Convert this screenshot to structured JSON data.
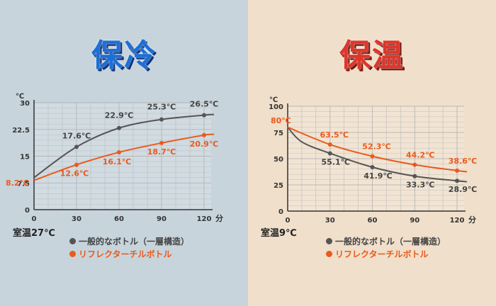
{
  "panels": {
    "cool": {
      "title": "保冷",
      "room_temp": "室温27℃"
    },
    "warm": {
      "title": "保温",
      "room_temp": "室温9℃"
    }
  },
  "legend": {
    "ordinary": "一般的なボトル（一層構造）",
    "reflector": "リフレクターチルボトル"
  },
  "colors": {
    "ordinary": "#555555",
    "reflector": "#ea5a1c"
  },
  "chart_data": [
    {
      "type": "line",
      "title": "保冷",
      "unit_y": "℃",
      "unit_x": "分",
      "x": [
        0,
        30,
        60,
        90,
        120
      ],
      "x_ticks": [
        "0",
        "30",
        "60",
        "90",
        "120"
      ],
      "y_ticks": [
        "0",
        "7.5",
        "15",
        "22.5",
        "30"
      ],
      "xlim": [
        0,
        125
      ],
      "ylim": [
        0,
        30
      ],
      "grid": true,
      "series": [
        {
          "name": "一般的なボトル（一層構造）",
          "x": [
            0,
            30,
            60,
            90,
            120,
            127
          ],
          "y": [
            9,
            17.6,
            22.9,
            25.3,
            26.5,
            26.7
          ],
          "marked": [
            30,
            60,
            90,
            120
          ],
          "labels": [
            "17.6℃",
            "22.9℃",
            "25.3℃",
            "26.5℃"
          ]
        },
        {
          "name": "リフレクターチルボトル",
          "x": [
            0,
            30,
            60,
            90,
            120,
            127
          ],
          "y": [
            8.2,
            12.6,
            16.1,
            18.7,
            20.9,
            21.1
          ],
          "marked": [
            30,
            60,
            90,
            120
          ],
          "labels": [
            "12.6℃",
            "16.1℃",
            "18.7℃",
            "20.9℃"
          ],
          "start_label": "8.2℃"
        }
      ]
    },
    {
      "type": "line",
      "title": "保温",
      "unit_y": "℃",
      "unit_x": "分",
      "x": [
        0,
        30,
        60,
        90,
        120
      ],
      "x_ticks": [
        "0",
        "30",
        "60",
        "90",
        "120"
      ],
      "y_ticks": [
        "0",
        "25",
        "50",
        "75",
        "100"
      ],
      "xlim": [
        0,
        125
      ],
      "ylim": [
        0,
        100
      ],
      "grid": true,
      "series": [
        {
          "name": "一般的なボトル（一層構造）",
          "x": [
            0,
            10,
            30,
            60,
            90,
            120,
            127
          ],
          "y": [
            80,
            66,
            55.1,
            41.9,
            33.3,
            28.9,
            28
          ],
          "marked": [
            30,
            60,
            90,
            120
          ],
          "labels": [
            "55.1℃",
            "41.9℃",
            "33.3℃",
            "28.9℃"
          ]
        },
        {
          "name": "リフレクターチルボトル",
          "x": [
            0,
            30,
            60,
            90,
            120,
            127
          ],
          "y": [
            80,
            63.5,
            52.3,
            44.2,
            38.6,
            37.5
          ],
          "marked": [
            30,
            60,
            90,
            120
          ],
          "labels": [
            "63.5℃",
            "52.3℃",
            "44.2℃",
            "38.6℃"
          ],
          "start_label": "80℃"
        }
      ]
    }
  ]
}
